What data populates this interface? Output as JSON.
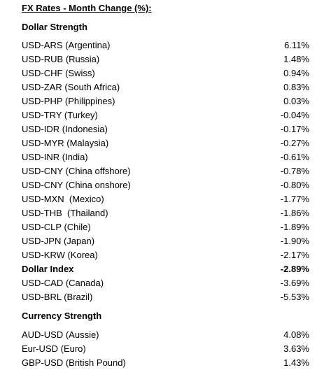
{
  "title": "FX Rates - Month Change (%):",
  "dollar_strength": {
    "header": "Dollar Strength",
    "rows": [
      {
        "label": "USD-ARS (Argentina)",
        "value": "6.11%"
      },
      {
        "label": "USD-RUB (Russia)",
        "value": "1.48%"
      },
      {
        "label": "USD-CHF (Swiss)",
        "value": "0.94%"
      },
      {
        "label": "USD-ZAR (South Africa)",
        "value": "0.83%"
      },
      {
        "label": "USD-PHP (Philippines)",
        "value": "0.03%"
      },
      {
        "label": "USD-TRY (Turkey)",
        "value": "-0.04%"
      },
      {
        "label": "USD-IDR (Indonesia)",
        "value": "-0.17%"
      },
      {
        "label": "USD-MYR (Malaysia)",
        "value": "-0.27%"
      },
      {
        "label": "USD-INR (India)",
        "value": "-0.61%"
      },
      {
        "label": "USD-CNY (China offshore)",
        "value": "-0.78%"
      },
      {
        "label": "USD-CNY (China onshore)",
        "value": "-0.80%"
      },
      {
        "label": "USD-MXN  (Mexico)",
        "value": "-1.77%"
      },
      {
        "label": "USD-THB  (Thailand)",
        "value": "-1.86%"
      },
      {
        "label": "USD-CLP (Chile)",
        "value": "-1.89%"
      },
      {
        "label": "USD-JPN (Japan)",
        "value": "-1.90%"
      },
      {
        "label": "USD-KRW (Korea)",
        "value": "-2.17%"
      },
      {
        "label": "Dollar Index",
        "value": "-2.89%"
      },
      {
        "label": "USD-CAD (Canada)",
        "value": "-3.69%"
      },
      {
        "label": "USD-BRL (Brazil)",
        "value": "-5.53%"
      }
    ]
  },
  "currency_strength": {
    "header": "Currency Strength",
    "rows": [
      {
        "label": "AUD-USD (Aussie)",
        "value": "4.08%"
      },
      {
        "label": "Eur-USD (Euro)",
        "value": "3.63%"
      },
      {
        "label": "GBP-USD (British Pound)",
        "value": "1.43%"
      }
    ]
  }
}
